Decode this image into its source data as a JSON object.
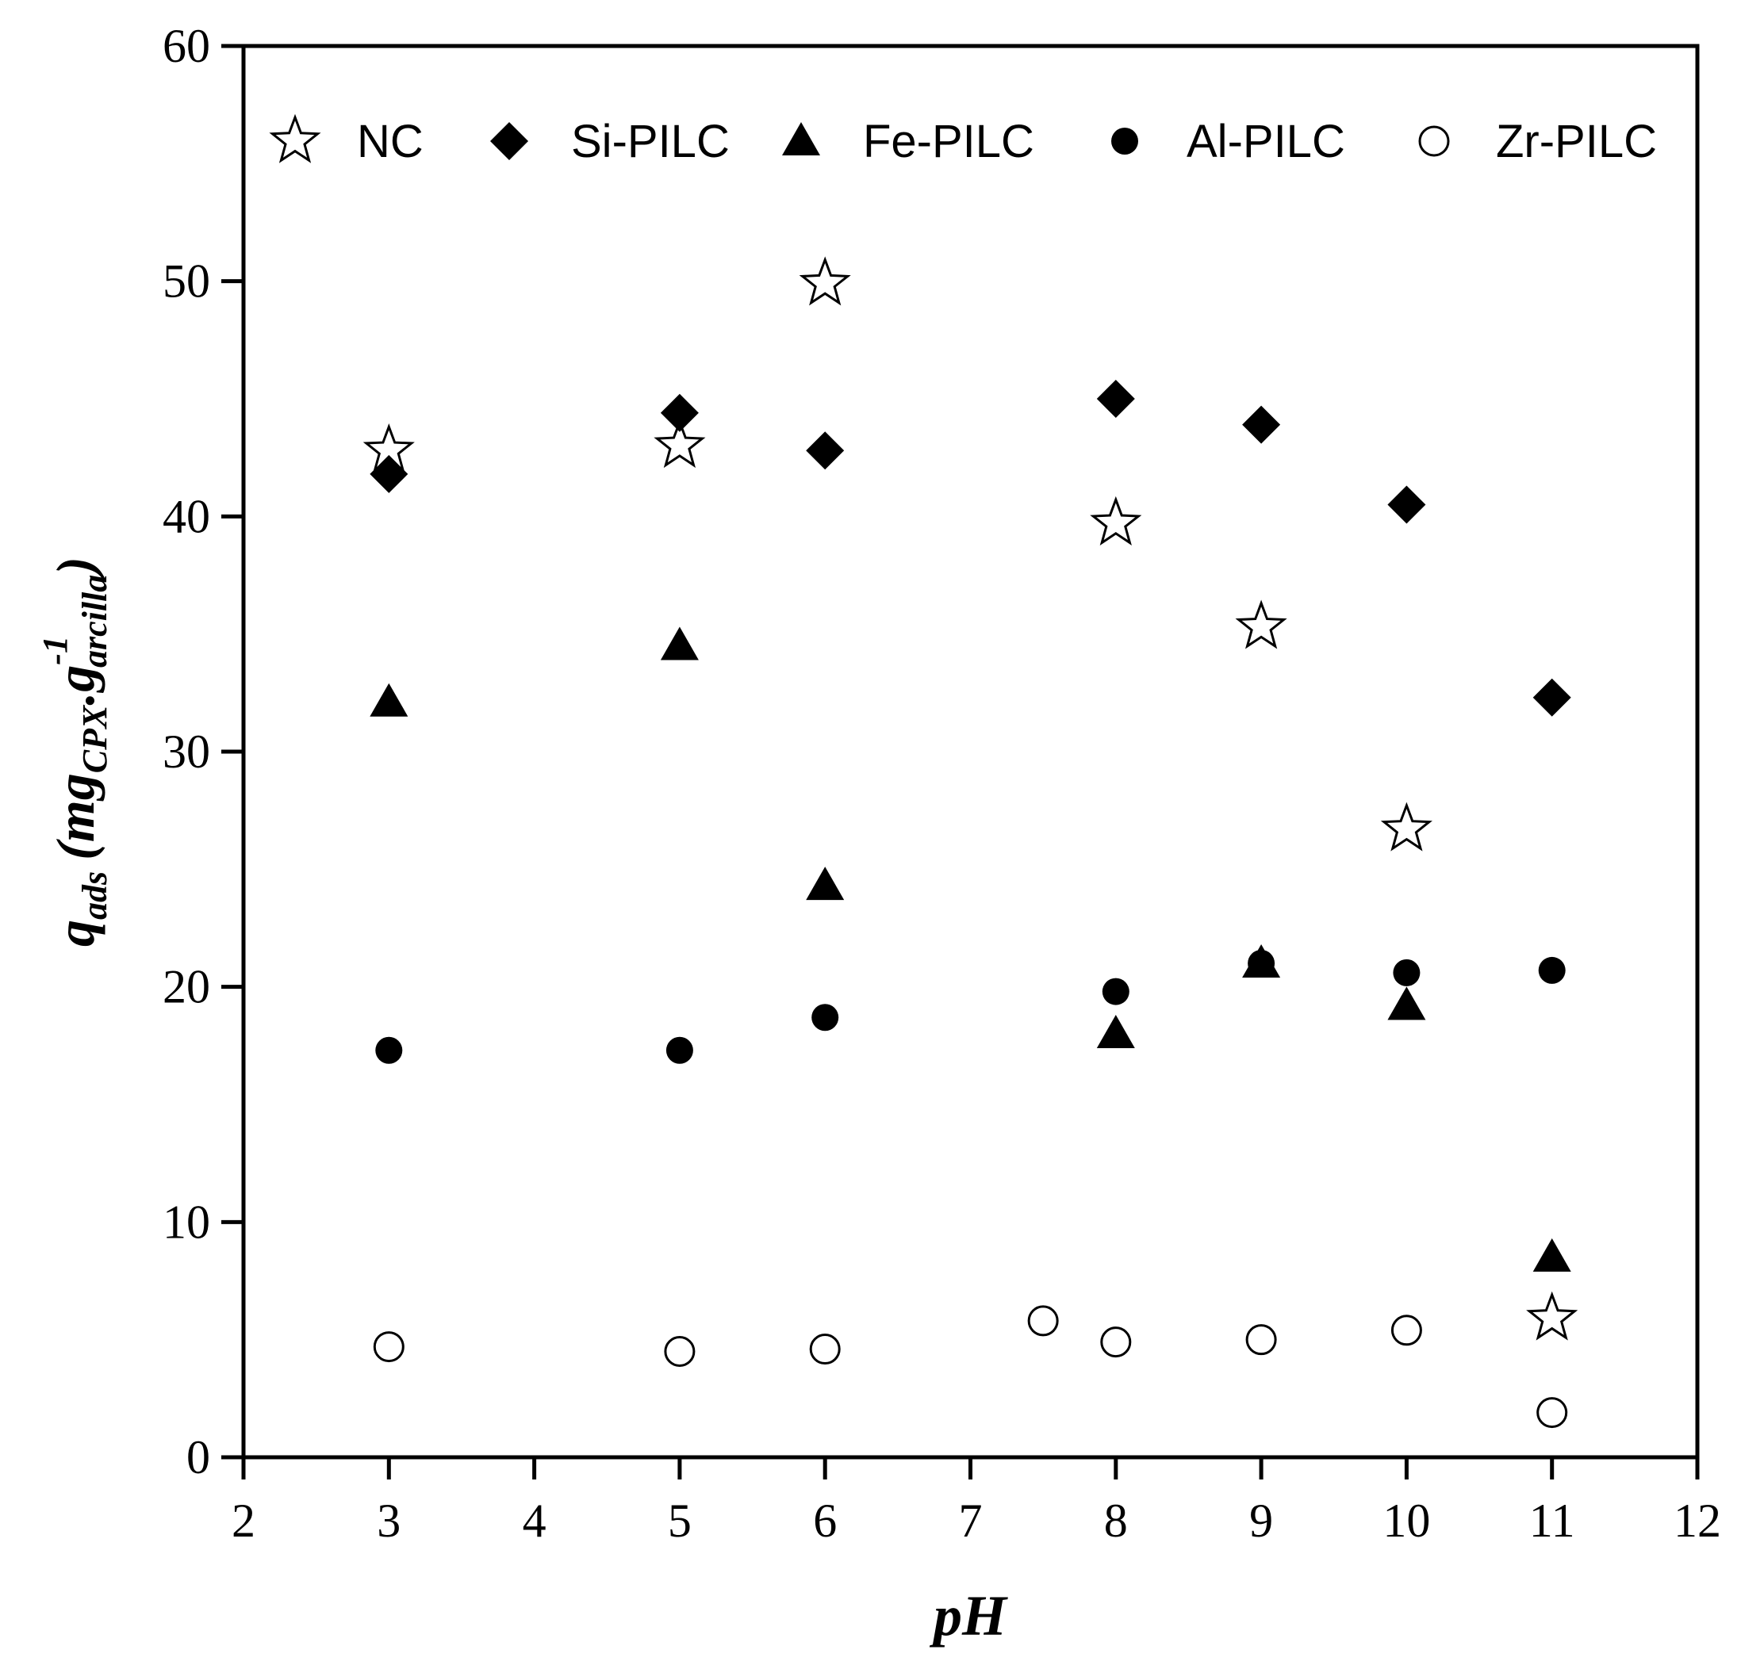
{
  "chart_data": {
    "type": "scatter",
    "xlabel": "pH",
    "ylabel": {
      "main": "q",
      "main_sub": "ads",
      "open": "(mg",
      "sub1": "CPX",
      "dot": ".",
      "g": "g",
      "sup": "-1",
      "sub2": "arcilla",
      "close": ")"
    },
    "xlim": [
      2,
      12
    ],
    "ylim": [
      0,
      60
    ],
    "xticks": [
      2,
      3,
      4,
      5,
      6,
      7,
      8,
      9,
      10,
      11,
      12
    ],
    "yticks": [
      0,
      10,
      20,
      30,
      40,
      50,
      60
    ],
    "grid": false,
    "legend_position": "top",
    "series": [
      {
        "name": "NC",
        "marker": "open-star",
        "points": [
          [
            3,
            42.8
          ],
          [
            5,
            43.0
          ],
          [
            6,
            49.9
          ],
          [
            8,
            39.7
          ],
          [
            9,
            35.3
          ],
          [
            10,
            26.7
          ],
          [
            11,
            5.9
          ]
        ]
      },
      {
        "name": "Si-PILC",
        "marker": "filled-diamond",
        "points": [
          [
            3,
            41.8
          ],
          [
            5,
            44.4
          ],
          [
            6,
            42.8
          ],
          [
            8,
            45.0
          ],
          [
            9,
            43.9
          ],
          [
            10,
            40.5
          ],
          [
            11,
            32.3
          ]
        ]
      },
      {
        "name": "Fe-PILC",
        "marker": "filled-triangle",
        "points": [
          [
            3,
            32.1
          ],
          [
            5,
            34.5
          ],
          [
            6,
            24.3
          ],
          [
            8,
            18.0
          ],
          [
            9,
            21.0
          ],
          [
            10,
            19.2
          ],
          [
            11,
            8.5
          ]
        ]
      },
      {
        "name": "Al-PILC",
        "marker": "filled-circle",
        "points": [
          [
            3,
            17.3
          ],
          [
            5,
            17.3
          ],
          [
            6,
            18.7
          ],
          [
            8,
            19.8
          ],
          [
            9,
            21.0
          ],
          [
            10,
            20.6
          ],
          [
            11,
            20.7
          ]
        ]
      },
      {
        "name": "Zr-PILC",
        "marker": "open-circle",
        "points": [
          [
            3,
            4.7
          ],
          [
            5,
            4.5
          ],
          [
            6,
            4.6
          ],
          [
            7.5,
            5.8
          ],
          [
            8,
            4.9
          ],
          [
            9,
            5.0
          ],
          [
            10,
            5.4
          ],
          [
            11,
            1.9
          ]
        ]
      }
    ]
  }
}
